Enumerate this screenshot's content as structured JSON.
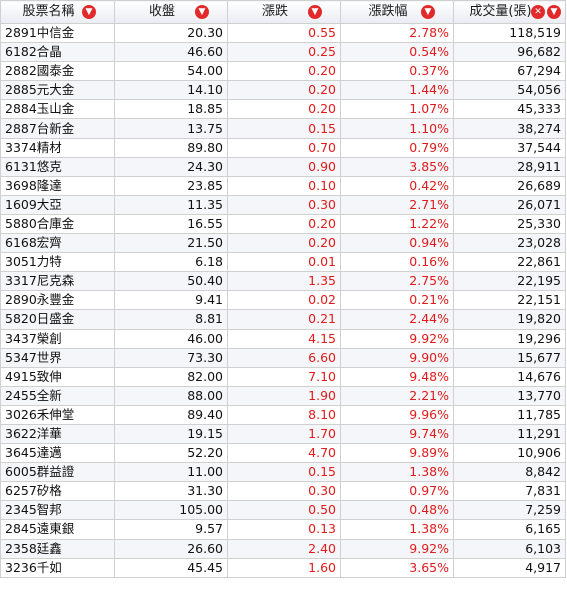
{
  "headers": {
    "name": "股票名稱",
    "close": "收盤",
    "change": "漲跌",
    "change_pct": "漲跌幅",
    "volume": "成交量(張)"
  },
  "colors": {
    "up": "#e01b1b",
    "sort_badge": "#e22a2a",
    "border": "#d0d0d0"
  },
  "icons": {
    "sort": "sort-down-arrow-icon",
    "clear": "clear-x-icon"
  },
  "rows": [
    {
      "name": "2891中信金",
      "close": "20.30",
      "change": "0.55",
      "change_pct": "2.78%",
      "volume": "118,519"
    },
    {
      "name": "6182合晶",
      "close": "46.60",
      "change": "0.25",
      "change_pct": "0.54%",
      "volume": "96,682"
    },
    {
      "name": "2882國泰金",
      "close": "54.00",
      "change": "0.20",
      "change_pct": "0.37%",
      "volume": "67,294"
    },
    {
      "name": "2885元大金",
      "close": "14.10",
      "change": "0.20",
      "change_pct": "1.44%",
      "volume": "54,056"
    },
    {
      "name": "2884玉山金",
      "close": "18.85",
      "change": "0.20",
      "change_pct": "1.07%",
      "volume": "45,333"
    },
    {
      "name": "2887台新金",
      "close": "13.75",
      "change": "0.15",
      "change_pct": "1.10%",
      "volume": "38,274"
    },
    {
      "name": "3374精材",
      "close": "89.80",
      "change": "0.70",
      "change_pct": "0.79%",
      "volume": "37,544"
    },
    {
      "name": "6131悠克",
      "close": "24.30",
      "change": "0.90",
      "change_pct": "3.85%",
      "volume": "28,911"
    },
    {
      "name": "3698隆達",
      "close": "23.85",
      "change": "0.10",
      "change_pct": "0.42%",
      "volume": "26,689"
    },
    {
      "name": "1609大亞",
      "close": "11.35",
      "change": "0.30",
      "change_pct": "2.71%",
      "volume": "26,071"
    },
    {
      "name": "5880合庫金",
      "close": "16.55",
      "change": "0.20",
      "change_pct": "1.22%",
      "volume": "25,330"
    },
    {
      "name": "6168宏齊",
      "close": "21.50",
      "change": "0.20",
      "change_pct": "0.94%",
      "volume": "23,028"
    },
    {
      "name": "3051力特",
      "close": "6.18",
      "change": "0.01",
      "change_pct": "0.16%",
      "volume": "22,861"
    },
    {
      "name": "3317尼克森",
      "close": "50.40",
      "change": "1.35",
      "change_pct": "2.75%",
      "volume": "22,195"
    },
    {
      "name": "2890永豐金",
      "close": "9.41",
      "change": "0.02",
      "change_pct": "0.21%",
      "volume": "22,151"
    },
    {
      "name": "5820日盛金",
      "close": "8.81",
      "change": "0.21",
      "change_pct": "2.44%",
      "volume": "19,820"
    },
    {
      "name": "3437榮創",
      "close": "46.00",
      "change": "4.15",
      "change_pct": "9.92%",
      "volume": "19,296"
    },
    {
      "name": "5347世界",
      "close": "73.30",
      "change": "6.60",
      "change_pct": "9.90%",
      "volume": "15,677"
    },
    {
      "name": "4915致伸",
      "close": "82.00",
      "change": "7.10",
      "change_pct": "9.48%",
      "volume": "14,676"
    },
    {
      "name": "2455全新",
      "close": "88.00",
      "change": "1.90",
      "change_pct": "2.21%",
      "volume": "13,770"
    },
    {
      "name": "3026禾伸堂",
      "close": "89.40",
      "change": "8.10",
      "change_pct": "9.96%",
      "volume": "11,785"
    },
    {
      "name": "3622洋華",
      "close": "19.15",
      "change": "1.70",
      "change_pct": "9.74%",
      "volume": "11,291"
    },
    {
      "name": "3645達邁",
      "close": "52.20",
      "change": "4.70",
      "change_pct": "9.89%",
      "volume": "10,906"
    },
    {
      "name": "6005群益證",
      "close": "11.00",
      "change": "0.15",
      "change_pct": "1.38%",
      "volume": "8,842"
    },
    {
      "name": "6257矽格",
      "close": "31.30",
      "change": "0.30",
      "change_pct": "0.97%",
      "volume": "7,831"
    },
    {
      "name": "2345智邦",
      "close": "105.00",
      "change": "0.50",
      "change_pct": "0.48%",
      "volume": "7,259"
    },
    {
      "name": "2845遠東銀",
      "close": "9.57",
      "change": "0.13",
      "change_pct": "1.38%",
      "volume": "6,165"
    },
    {
      "name": "2358廷鑫",
      "close": "26.60",
      "change": "2.40",
      "change_pct": "9.92%",
      "volume": "6,103"
    },
    {
      "name": "3236千如",
      "close": "45.45",
      "change": "1.60",
      "change_pct": "3.65%",
      "volume": "4,917"
    }
  ]
}
